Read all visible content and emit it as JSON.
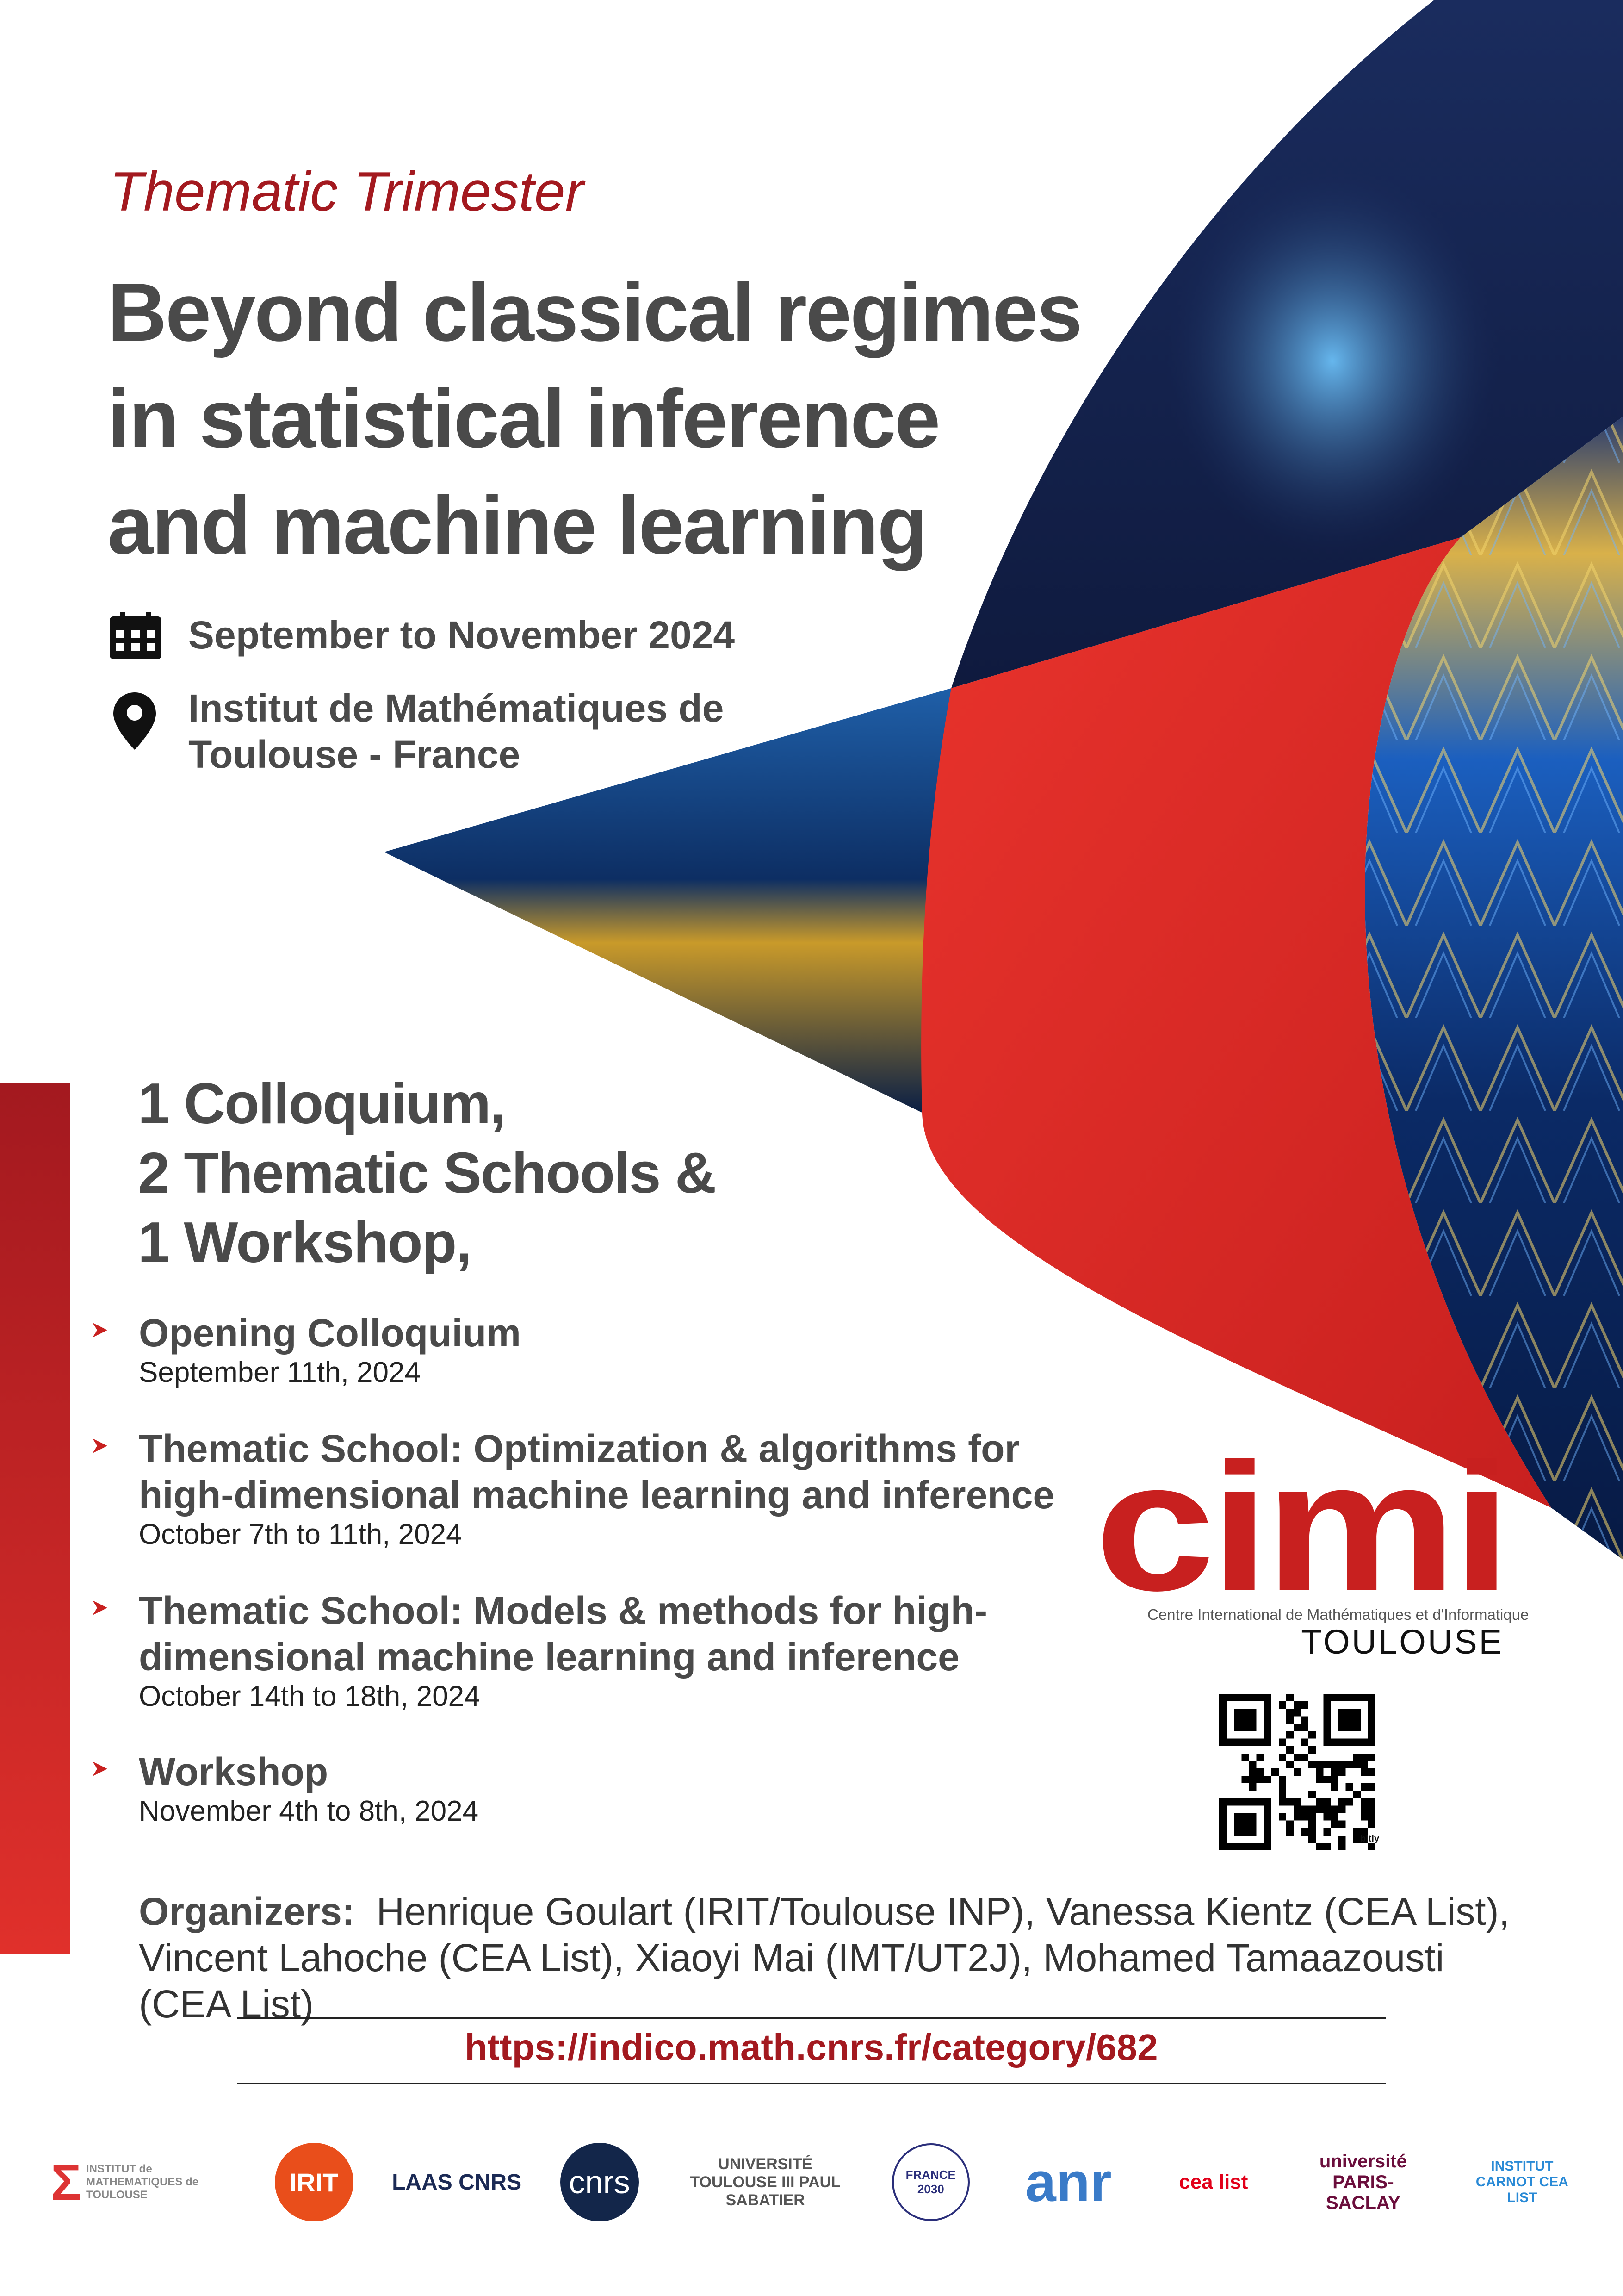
{
  "header": {
    "kicker": "Thematic Trimester",
    "title_lines": [
      "Beyond classical regimes",
      "in statistical inference",
      "and machine learning"
    ]
  },
  "info": {
    "dates": "September to November 2024",
    "location_lines": [
      "Institut de Mathématiques de",
      "Toulouse - France"
    ],
    "icons": [
      "calendar-icon",
      "map-pin-icon"
    ]
  },
  "summary_lines": [
    "1 Colloquium,",
    "2 Thematic Schools &",
    "1 Workshop,"
  ],
  "events": [
    {
      "title_lines": [
        "Opening Colloquium"
      ],
      "date": "September 11th, 2024"
    },
    {
      "title_lines": [
        "Thematic School: Optimization & algorithms for",
        "high-dimensional machine learning and inference"
      ],
      "date": "October 7th  to 11th, 2024"
    },
    {
      "title_lines": [
        "Thematic School: Models & methods for high-",
        "dimensional machine learning and inference"
      ],
      "date": "October 14th to 18th, 2024"
    },
    {
      "title_lines": [
        "Workshop"
      ],
      "date": "November 4th to 8th, 2024"
    }
  ],
  "organizers": {
    "label": "Organizers:",
    "text": "Henrique Goulart (IRIT/Toulouse INP), Vanessa Kientz (CEA List), Vincent Lahoche (CEA List), Xiaoyi Mai (IMT/UT2J), Mohamed Tamaazousti (CEA List)"
  },
  "url": "https://indico.math.cnrs.fr/category/682",
  "cimi": {
    "logo_text": "cimi",
    "subtitle": "Centre International de Mathématiques et d'Informatique",
    "city": "TOULOUSE",
    "qr_caption": "bitly"
  },
  "partner_logos": [
    "INSTITUT de MATHEMATIQUES de TOULOUSE",
    "IRIT",
    "LAAS CNRS",
    "cnrs",
    "UNIVERSITÉ TOULOUSE III PAUL SABATIER",
    "FRANCE 2030",
    "anr",
    "cea list",
    "université PARIS-SACLAY",
    "INSTITUT CARNOT CEA LIST"
  ],
  "colors": {
    "accent_red": "#a3191f",
    "bright_red": "#e0302b",
    "text_gray": "#4a4a4a",
    "navy": "#14234d"
  }
}
